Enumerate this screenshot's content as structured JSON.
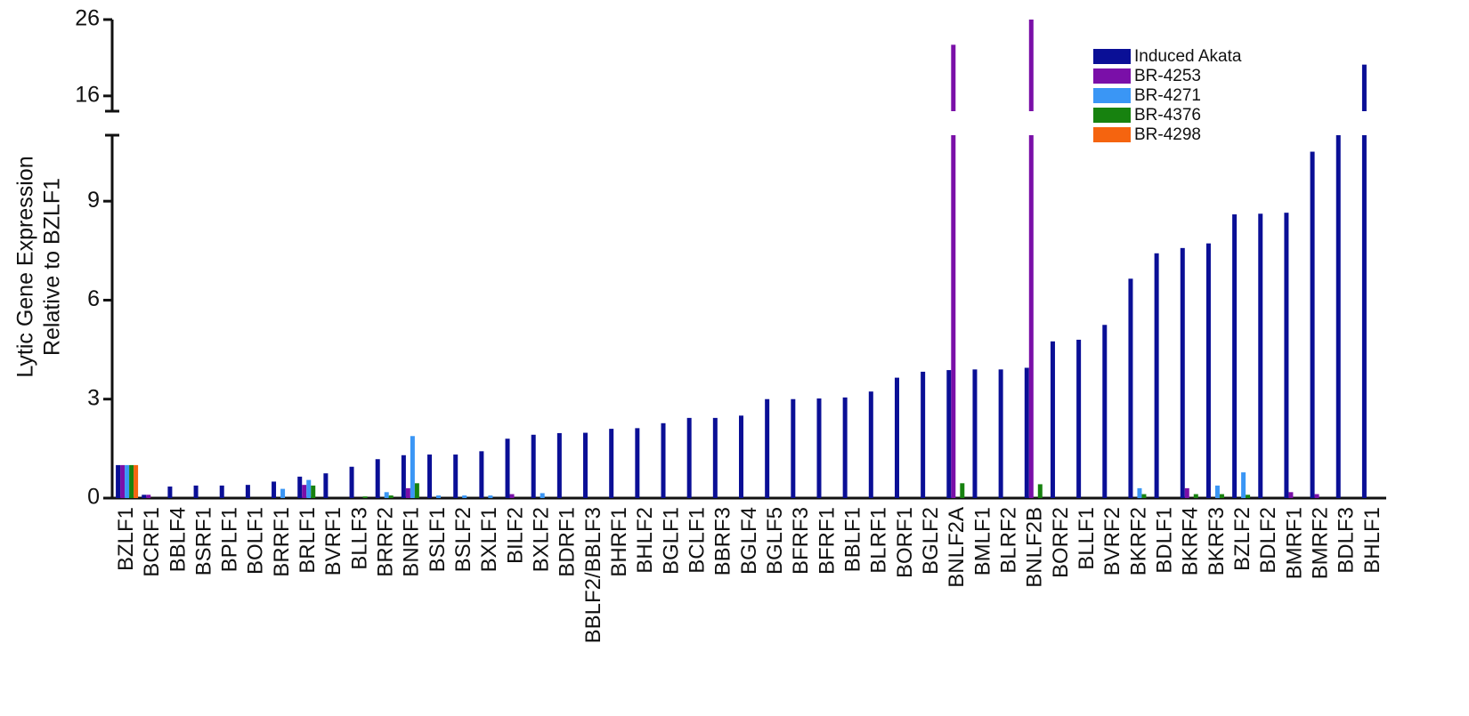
{
  "chart_data": {
    "type": "bar",
    "ylabel": [
      "Lytic Gene Expression",
      "Relative to BZLF1"
    ],
    "categories": [
      "BZLF1",
      "BCRF1",
      "BBLF4",
      "BSRF1",
      "BPLF1",
      "BOLF1",
      "BRRF1",
      "BRLF1",
      "BVRF1",
      "BLLF3",
      "BRRF2",
      "BNRF1",
      "BSLF1",
      "BSLF2",
      "BXLF1",
      "BILF2",
      "BXLF2",
      "BDRF1",
      "BBLF2/BBLF3",
      "BHRF1",
      "BHLF2",
      "BGLF1",
      "BCLF1",
      "BBRF3",
      "BGLF4",
      "BGLF5",
      "BFRF3",
      "BFRF1",
      "BBLF1",
      "BLRF1",
      "BORF1",
      "BGLF2",
      "BNLF2A",
      "BMLF1",
      "BLRF2",
      "BNLF2B",
      "BORF2",
      "BLLF1",
      "BVRF2",
      "BKRF2",
      "BDLF1",
      "BKRF4",
      "BKRF3",
      "BZLF2",
      "BDLF2",
      "BMRF1",
      "BMRF2",
      "BDLF3",
      "BHLF1"
    ],
    "series": [
      {
        "name": "Induced Akata",
        "color": "#0a0f96",
        "values": [
          1,
          0.1,
          0.35,
          0.38,
          0.38,
          0.4,
          0.5,
          0.65,
          0.75,
          0.95,
          1.18,
          1.3,
          1.32,
          1.32,
          1.42,
          1.8,
          1.92,
          1.97,
          1.98,
          2.1,
          2.12,
          2.27,
          2.43,
          2.43,
          2.5,
          3,
          3,
          3.02,
          3.05,
          3.23,
          3.65,
          3.83,
          3.88,
          3.9,
          3.9,
          3.95,
          4.75,
          4.8,
          5.25,
          6.65,
          7.42,
          7.58,
          7.72,
          8.6,
          8.62,
          8.65,
          10.5,
          11,
          20.1
        ]
      },
      {
        "name": "BR-4253",
        "color": "#7a0fa8",
        "values": [
          1,
          0.1,
          0,
          0,
          0,
          0,
          0,
          0.4,
          0,
          0,
          0,
          0.3,
          0,
          0,
          0,
          0.12,
          0,
          0,
          0,
          0,
          0,
          0,
          0,
          0,
          0,
          0,
          0,
          0,
          0,
          0,
          0,
          0,
          22.7,
          0,
          0,
          26,
          0,
          0,
          0,
          0,
          0,
          0.3,
          0,
          0,
          0,
          0.18,
          0.12,
          0,
          0
        ]
      },
      {
        "name": "BR-4271",
        "color": "#3a96f5",
        "values": [
          1,
          0,
          0,
          0,
          0,
          0,
          0.28,
          0.55,
          0,
          0,
          0.18,
          1.88,
          0.08,
          0.08,
          0.08,
          0,
          0.15,
          0,
          0,
          0,
          0,
          0,
          0,
          0,
          0,
          0,
          0,
          0,
          0,
          0,
          0,
          0,
          0,
          0,
          0,
          0,
          0,
          0,
          0,
          0.3,
          0,
          0,
          0.38,
          0.78,
          0,
          0,
          0,
          0,
          0
        ]
      },
      {
        "name": "BR-4376",
        "color": "#17820f",
        "values": [
          1,
          0,
          0,
          0,
          0,
          0,
          0,
          0.38,
          0,
          0.05,
          0.08,
          0.45,
          0,
          0,
          0,
          0,
          0,
          0,
          0,
          0,
          0,
          0,
          0,
          0,
          0,
          0,
          0,
          0,
          0,
          0,
          0,
          0,
          0.45,
          0,
          0,
          0.42,
          0,
          0,
          0,
          0.12,
          0,
          0.12,
          0.12,
          0.1,
          0,
          0,
          0,
          0,
          0
        ]
      },
      {
        "name": "BR-4298",
        "color": "#f5640f",
        "values": [
          1,
          0,
          0,
          0,
          0,
          0,
          0,
          0,
          0,
          0,
          0,
          0,
          0,
          0,
          0,
          0,
          0,
          0,
          0,
          0,
          0,
          0,
          0,
          0,
          0,
          0,
          0,
          0,
          0,
          0,
          0,
          0,
          0,
          0,
          0,
          0,
          0,
          0,
          0,
          0,
          0,
          0,
          0,
          0,
          0,
          0,
          0,
          0,
          0
        ]
      }
    ],
    "ylim": [
      0,
      26
    ],
    "ybreak": [
      11,
      14
    ],
    "yticks": [
      0,
      3,
      6,
      9,
      16,
      26
    ],
    "legend": "top-right"
  }
}
